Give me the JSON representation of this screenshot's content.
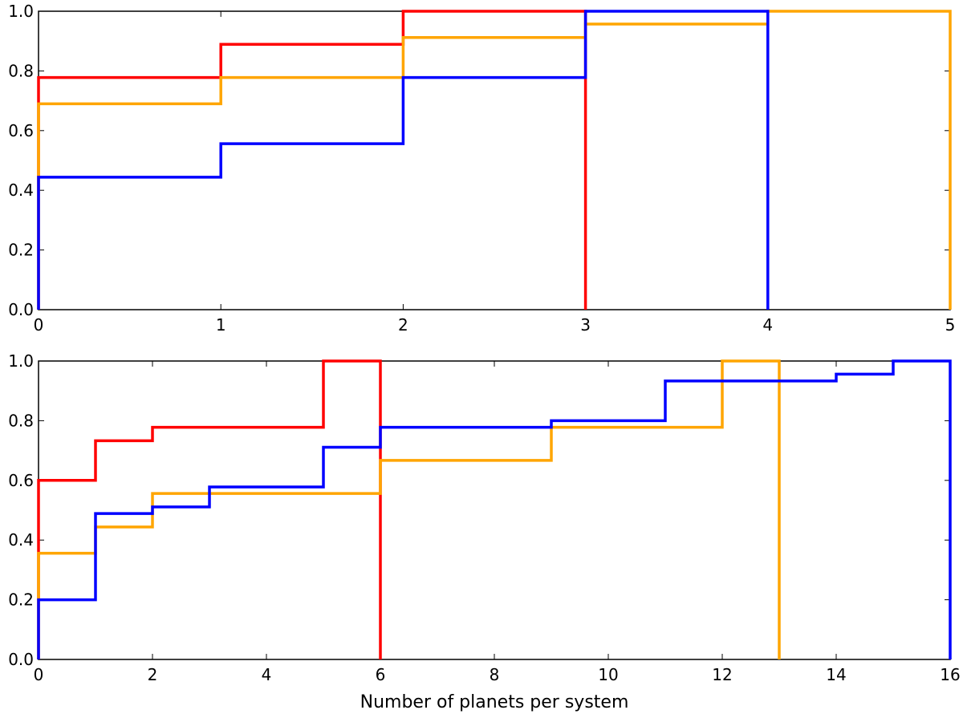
{
  "chart_data": [
    {
      "type": "line",
      "step": "post",
      "xlabel": "",
      "ylabel": "",
      "xlim": [
        0,
        5
      ],
      "ylim": [
        0,
        1
      ],
      "xticks": [
        0,
        1,
        2,
        3,
        4,
        5
      ],
      "yticks": [
        0.0,
        0.2,
        0.4,
        0.6,
        0.8,
        1.0
      ],
      "xtick_labels": [
        "0",
        "1",
        "2",
        "3",
        "4",
        "5"
      ],
      "ytick_labels": [
        "0.0",
        "0.2",
        "0.4",
        "0.6",
        "0.8",
        "1.0"
      ],
      "grid": false,
      "series": [
        {
          "color": "#ff0000",
          "points": [
            [
              0,
              0
            ],
            [
              0,
              0.778
            ],
            [
              1,
              0.778
            ],
            [
              1,
              0.889
            ],
            [
              2,
              0.889
            ],
            [
              2,
              1.0
            ],
            [
              3,
              1.0
            ],
            [
              3,
              0
            ]
          ]
        },
        {
          "color": "#ffa500",
          "points": [
            [
              0,
              0
            ],
            [
              0,
              0.69
            ],
            [
              1,
              0.69
            ],
            [
              1,
              0.778
            ],
            [
              2,
              0.778
            ],
            [
              2,
              0.912
            ],
            [
              3,
              0.912
            ],
            [
              3,
              0.957
            ],
            [
              4,
              0.957
            ],
            [
              4,
              1.0
            ],
            [
              5,
              1.0
            ],
            [
              5,
              0
            ]
          ]
        },
        {
          "color": "#0000ff",
          "points": [
            [
              0,
              0
            ],
            [
              0,
              0.444
            ],
            [
              1,
              0.444
            ],
            [
              1,
              0.556
            ],
            [
              2,
              0.556
            ],
            [
              2,
              0.778
            ],
            [
              3,
              0.778
            ],
            [
              3,
              1.0
            ],
            [
              4,
              1.0
            ],
            [
              4,
              0
            ]
          ]
        }
      ]
    },
    {
      "type": "line",
      "step": "post",
      "xlabel": "Number of planets per system",
      "ylabel": "",
      "xlim": [
        0,
        16
      ],
      "ylim": [
        0,
        1
      ],
      "xticks": [
        0,
        2,
        4,
        6,
        8,
        10,
        12,
        14,
        16
      ],
      "yticks": [
        0.0,
        0.2,
        0.4,
        0.6,
        0.8,
        1.0
      ],
      "xtick_labels": [
        "0",
        "2",
        "4",
        "6",
        "8",
        "10",
        "12",
        "14",
        "16"
      ],
      "ytick_labels": [
        "0.0",
        "0.2",
        "0.4",
        "0.6",
        "0.8",
        "1.0"
      ],
      "grid": false,
      "series": [
        {
          "color": "#ff0000",
          "points": [
            [
              0,
              0
            ],
            [
              0,
              0.6
            ],
            [
              1,
              0.6
            ],
            [
              1,
              0.733
            ],
            [
              2,
              0.733
            ],
            [
              2,
              0.778
            ],
            [
              3,
              0.778
            ],
            [
              4,
              0.778
            ],
            [
              5,
              0.778
            ],
            [
              5,
              1.0
            ],
            [
              6,
              1.0
            ],
            [
              6,
              0
            ]
          ]
        },
        {
          "color": "#ffa500",
          "points": [
            [
              0,
              0
            ],
            [
              0,
              0.356
            ],
            [
              1,
              0.356
            ],
            [
              1,
              0.444
            ],
            [
              2,
              0.444
            ],
            [
              2,
              0.556
            ],
            [
              3,
              0.556
            ],
            [
              4,
              0.556
            ],
            [
              5,
              0.556
            ],
            [
              6,
              0.556
            ],
            [
              6,
              0.667
            ],
            [
              7,
              0.667
            ],
            [
              8,
              0.667
            ],
            [
              9,
              0.667
            ],
            [
              9,
              0.778
            ],
            [
              10,
              0.778
            ],
            [
              11,
              0.778
            ],
            [
              12,
              0.778
            ],
            [
              12,
              1.0
            ],
            [
              13,
              1.0
            ],
            [
              13,
              0
            ]
          ]
        },
        {
          "color": "#0000ff",
          "points": [
            [
              0,
              0
            ],
            [
              0,
              0.2
            ],
            [
              1,
              0.2
            ],
            [
              1,
              0.489
            ],
            [
              2,
              0.489
            ],
            [
              2,
              0.511
            ],
            [
              3,
              0.511
            ],
            [
              3,
              0.578
            ],
            [
              4,
              0.578
            ],
            [
              5,
              0.578
            ],
            [
              5,
              0.711
            ],
            [
              6,
              0.711
            ],
            [
              6,
              0.778
            ],
            [
              7,
              0.778
            ],
            [
              8,
              0.778
            ],
            [
              9,
              0.778
            ],
            [
              9,
              0.8
            ],
            [
              10,
              0.8
            ],
            [
              11,
              0.8
            ],
            [
              11,
              0.933
            ],
            [
              12,
              0.933
            ],
            [
              13,
              0.933
            ],
            [
              14,
              0.933
            ],
            [
              14,
              0.956
            ],
            [
              15,
              0.956
            ],
            [
              15,
              1.0
            ],
            [
              16,
              1.0
            ],
            [
              16,
              0
            ]
          ]
        }
      ]
    }
  ]
}
